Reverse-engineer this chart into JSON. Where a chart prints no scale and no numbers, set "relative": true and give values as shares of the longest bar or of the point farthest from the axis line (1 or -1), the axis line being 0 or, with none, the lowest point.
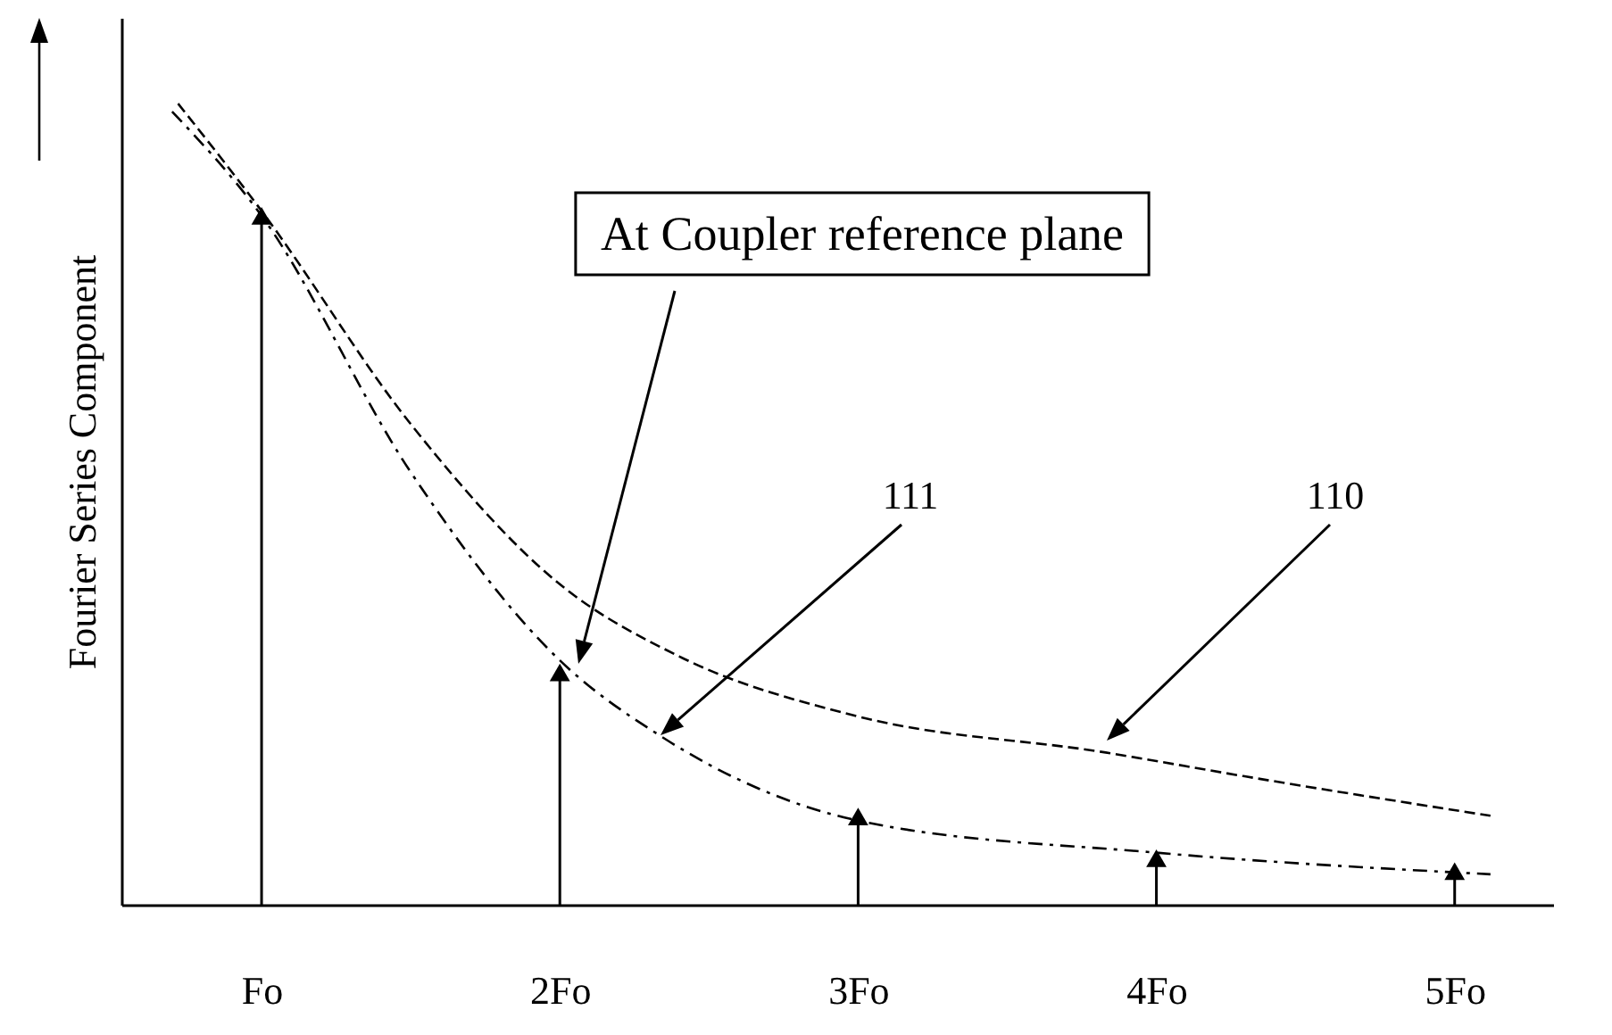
{
  "chart_data": {
    "type": "lollipop",
    "relative": true,
    "ylabel": "Fourier Series Component",
    "xlim": [
      0.53,
      5.33
    ],
    "xticks": [
      {
        "value": 1,
        "label": "Fo"
      },
      {
        "value": 2,
        "label": "2Fo"
      },
      {
        "value": 3,
        "label": "3Fo"
      },
      {
        "value": 4,
        "label": "4Fo"
      },
      {
        "value": 5,
        "label": "5Fo"
      }
    ],
    "series": [
      {
        "color": "#000000",
        "marker": "triangle",
        "x": [
          1,
          2,
          3,
          4,
          5
        ],
        "values": [
          0.86,
          0.29,
          0.11,
          0.058,
          0.042
        ]
      },
      {
        "type": "line",
        "color": "#000000",
        "line_style": "dashed",
        "x": [
          0.72,
          1,
          1.5,
          2,
          2.4,
          3,
          3.83,
          4.3,
          5.12
        ],
        "values": [
          1.0,
          0.866,
          0.6,
          0.4,
          0.31,
          0.235,
          0.19,
          0.16,
          0.111
        ]
      },
      {
        "type": "line",
        "color": "#000000",
        "line_style": "dashdot",
        "x": [
          0.7,
          1,
          1.5,
          2,
          2.34,
          3,
          4,
          5.12
        ],
        "values": [
          0.99,
          0.86,
          0.54,
          0.305,
          0.21,
          0.105,
          0.065,
          0.038
        ]
      }
    ],
    "annotations": [
      "At Coupler reference plane",
      "111",
      "110"
    ]
  }
}
